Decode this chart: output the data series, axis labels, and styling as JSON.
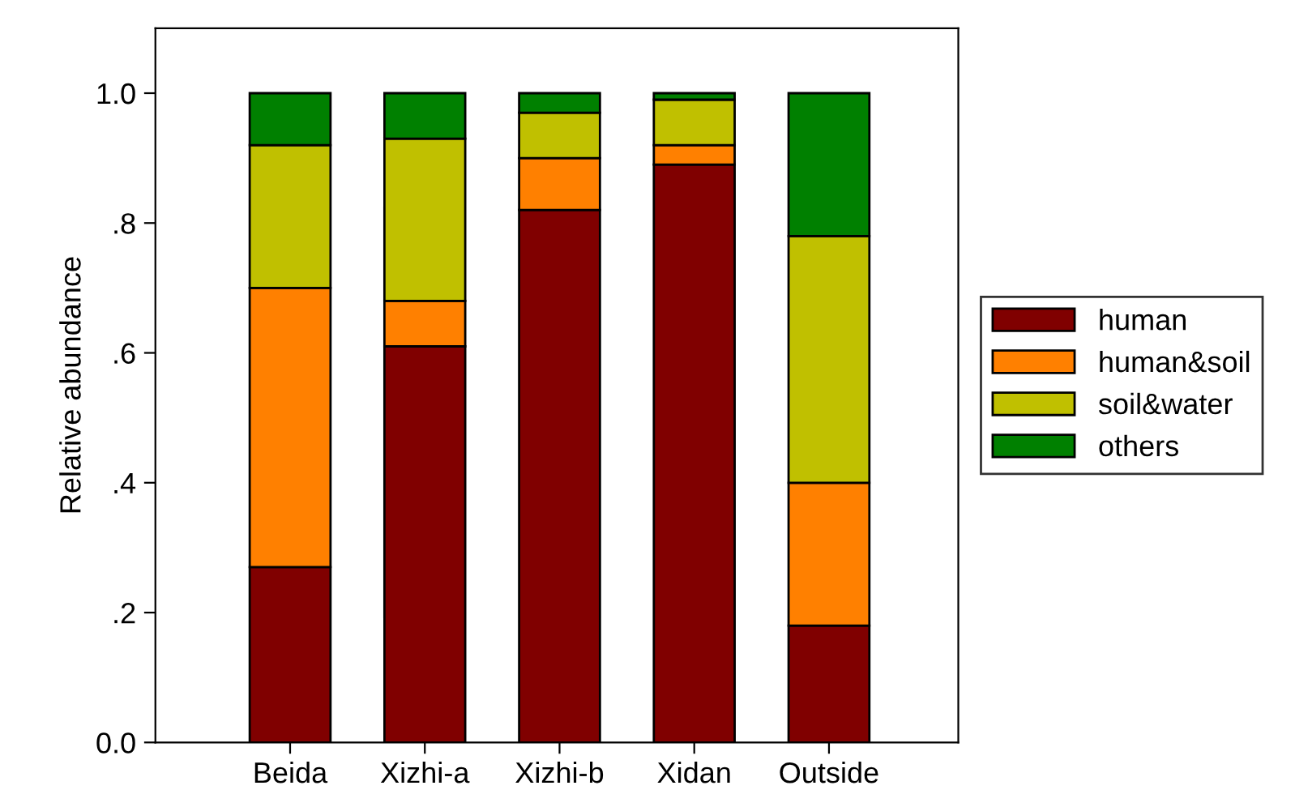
{
  "chart_data": {
    "type": "bar",
    "stacked": true,
    "ylabel": "Relative abundance",
    "categories": [
      "Beida",
      "Xizhi-a",
      "Xizhi-b",
      "Xidan",
      "Outside"
    ],
    "series": [
      {
        "name": "human",
        "color": "#800000",
        "values": [
          0.27,
          0.61,
          0.82,
          0.89,
          0.18
        ]
      },
      {
        "name": "human&soil",
        "color": "#ff8000",
        "values": [
          0.43,
          0.07,
          0.08,
          0.03,
          0.22
        ]
      },
      {
        "name": "soil&water",
        "color": "#c0c000",
        "values": [
          0.22,
          0.25,
          0.07,
          0.07,
          0.38
        ]
      },
      {
        "name": "others",
        "color": "#008000",
        "values": [
          0.08,
          0.07,
          0.03,
          0.01,
          0.22
        ]
      }
    ],
    "ylim": [
      0,
      1.1
    ],
    "yticks": [
      {
        "value": 0,
        "label": "0.0"
      },
      {
        "value": 0.2,
        "label": ".2"
      },
      {
        "value": 0.4,
        "label": ".4"
      },
      {
        "value": 0.6,
        "label": ".6"
      },
      {
        "value": 0.8,
        "label": ".8"
      },
      {
        "value": 1.0,
        "label": "1.0"
      }
    ],
    "grid": false,
    "legend": "right"
  }
}
